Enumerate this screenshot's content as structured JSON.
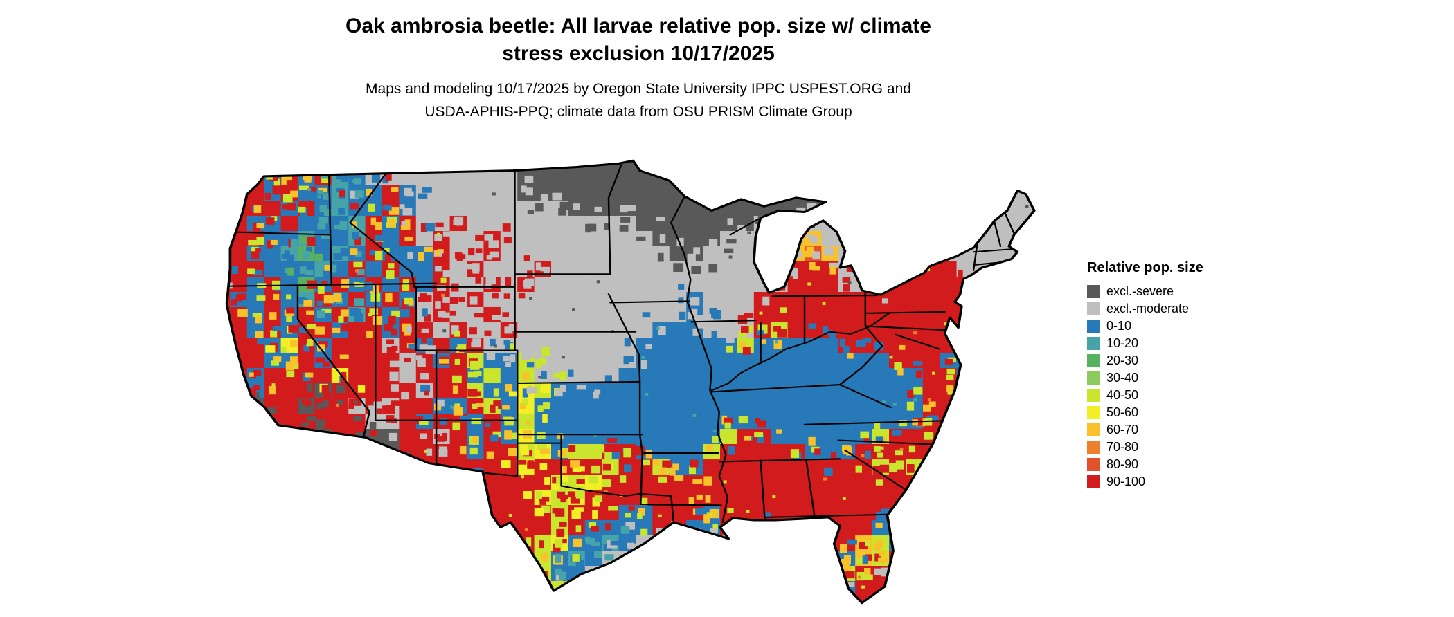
{
  "header": {
    "title_line1": "Oak ambrosia beetle: All larvae relative pop. size w/ climate",
    "title_line2": "stress exclusion 10/17/2025",
    "subtitle_line1": "Maps and modeling 10/17/2025 by Oregon State University IPPC USPEST.ORG and",
    "subtitle_line2": "USDA-APHIS-PPQ; climate data from OSU PRISM Climate Group"
  },
  "legend": {
    "title": "Relative pop. size",
    "items": [
      {
        "label": "excl.-severe",
        "color": "#595959",
        "code": "D"
      },
      {
        "label": "excl.-moderate",
        "color": "#bfbfbf",
        "code": "G"
      },
      {
        "label": "0-10",
        "color": "#2779b8",
        "code": "B"
      },
      {
        "label": "10-20",
        "color": "#46a4a8",
        "code": "T"
      },
      {
        "label": "20-30",
        "color": "#58b061",
        "code": "E"
      },
      {
        "label": "30-40",
        "color": "#8ccb5e",
        "code": "L"
      },
      {
        "label": "40-50",
        "color": "#c9e52e",
        "code": "Y"
      },
      {
        "label": "50-60",
        "color": "#f3ef26",
        "code": "W"
      },
      {
        "label": "60-70",
        "color": "#f9c22b",
        "code": "O"
      },
      {
        "label": "70-80",
        "color": "#ee7f2d",
        "code": "N"
      },
      {
        "label": "80-90",
        "color": "#e3512a",
        "code": "V"
      },
      {
        "label": "90-100",
        "color": "#d21b1c",
        "code": "R"
      }
    ]
  },
  "map": {
    "region": "Contiguous United States",
    "palette": {
      "D": "#595959",
      "G": "#bfbfbf",
      "B": "#2779b8",
      "T": "#46a4a8",
      "E": "#58b061",
      "L": "#8ccb5e",
      "Y": "#c9e52e",
      "W": "#f3ef26",
      "O": "#f9c22b",
      "N": "#ee7f2d",
      "V": "#e3512a",
      "R": "#d21b1c"
    },
    "raster": [
      "RRBBRRBBGGGGGGGGGGDDDDDDDDDDDDDDDDDDGGGGGGGGGGGGGG",
      "RRRBRBRTBGGGGGGGGGDDDDDDDDDDDDDDDDDDGGGGGGGGGGGGGG",
      "RRRBRBBTBBRBGGGGGGDDDDDDDDDDDDDDDDDDGGGGGGGGGGGGGG",
      "RRRRBRBTBBRBGGGGGGGGGDDDDDDDDDDDDDDDGGGGGGGGGGGGGG",
      "RRBBRBBBTRBRGGRGGGGGGGGGGDDDDDDDGDGGGGGGGGGGGGGGGG",
      "RRRBBTBBTRBRGRGGRGGGGGGGGGDDDDGGGGOOGGGRGGGGGGGGGG",
      "RRBBTEBTBRBBBRGGRGGGGGGGGGGDDGGGGGOVOGGGGRRGGGGGGG",
      "RRRBBBTBRBRBBRGRGGGRGGGGGGGGGGGGGGRRRGGGRRRRGGGGGG",
      "RRBRBEBRBRBRBRGGRGRGGGGGGGGGGGGGGGRRRGGGRRRRRGRRRG",
      "RBBRBTRBRBRBGRGRGGGGGGGGGGGGBGGGRRRRRRRRRRRRRRBRG",
      "RRBRBRBRTRBRGRGGRGGGGGGGGGGGBGGGRRRRRRRRRRRRRRBRG",
      "RRBRBRRBRRBRRGRGGRGGGGGGGGBBBGGGRYRRRRRRRRRRRBRGGG",
      "RRRBWRBRRRGRBRBRGGGGGGGGGBBBBBBYBBBBBRRRRRRRBBGGGG",
      "RRRBBRBRRRRGRBRYBBYGGGGGGBBBBBBBBBBBBBBBRRRBBGGGGG",
      "RRBRRRRWRRRGRRRBYBYGGGGGBBBBBBBBBBBBBBBBBBRRBGGGGG",
      "RRBRRRDRRRRRGRRYBBWYBBBBBBBBBBBBBBBBBBBBBBRRBGGGGG",
      "RVDRRDRRGRGRRBBRYBWBBBBBBBBBBBBBBBBBBBBBBBRRBGGGGG",
      "RRDDRRRRRGGRBRRBRBYBBBBBBBBBBBBBBBBBBBBBBBRRBGGGGG",
      "RRRRRDDRRDDRRGRBRBWBBBBBBBBBBBYRRBBBBBBYRRRBGGGGG",
      "RRRRRRRDDDDRRRRBRRYWBYYRRBBBBYRRRRRBBBRRRRRBGGGGGG",
      "RRRRRRRDDRRRRRRRRRWRRRRYRRYBBRRRRRRRRRRYRYRRGGGGGG",
      "RRRRRRRRRRRRRRRRRRRRWYWRRRRRRRRRRRRRRRRRRRRBGGGGGG",
      "RRRRRRRRRRRRRRRBRRRWYWRRRRRRRRRRRRRRRRRRRRBGGGGGGG",
      "RRRRRRRRRRRRRRRRRRRRYRRRBBRRRBRRRRRRRRRRRRGGGGGGGG",
      "RRRRRRRRRRRRRRRRRRRRYRBBBBRRBBRRRBRRRRRBRRGGGGGGGG",
      "RRRRRRRRRRRRRRRRRRRYWBBTBGGGGGGGGGGGRROYBRGGGGGGGG",
      "RRRRRRRRRRRRRRRRRRRYBTBGGGGGGGGGGGGGRBOYRGGGGGGGGG",
      "RRRRRRRRRRRRRRRRRRRYBBGGGGGGGGGGGGGGRYRRGGGGGGGGGG",
      "RRRRRRRRRRRRRRRRRRRRYGGGGGGGGGGGGGGGRBRRGGGGGGGGGG",
      "RRRRRRRRRRRRRRRRRRRRRGGGGGGGGGGGGGGGGRRRGGGGGGGGGG"
    ]
  }
}
